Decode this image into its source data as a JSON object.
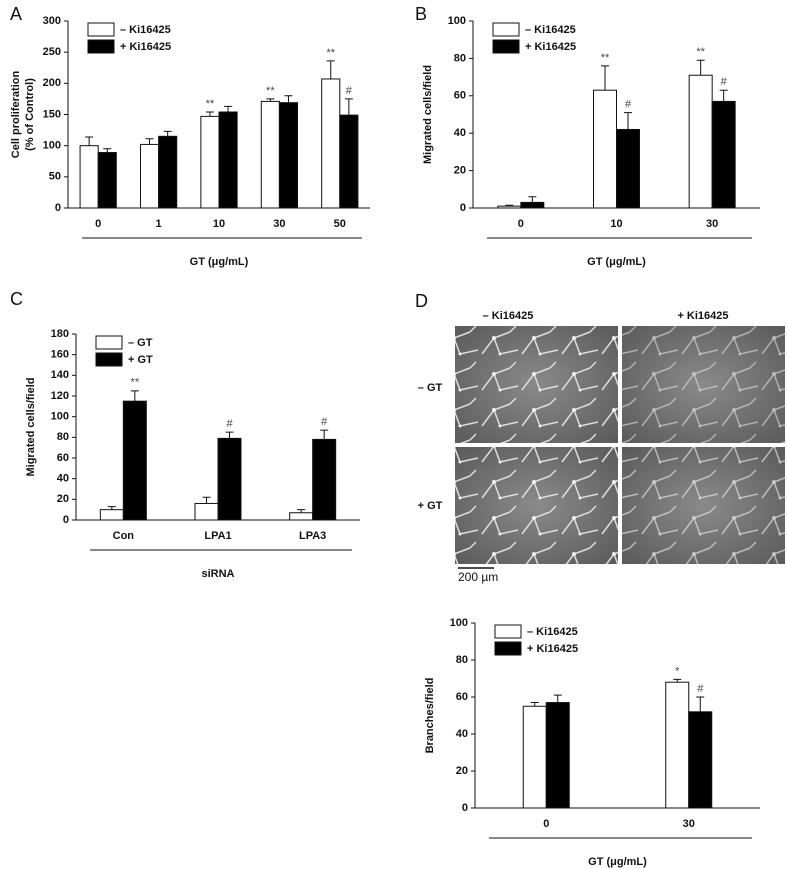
{
  "chart_data": [
    {
      "panel": "A",
      "type": "bar",
      "ylabel": [
        "Cell proliferation",
        "(% of Control)"
      ],
      "xlabel": "GT (μg/mL)",
      "categories": [
        "0",
        "1",
        "10",
        "30",
        "50"
      ],
      "series": [
        {
          "name": "– Ki16425",
          "color": "#ffffff",
          "values": [
            100,
            102,
            147,
            171,
            207
          ],
          "errors": [
            14,
            9,
            7,
            4,
            29
          ],
          "annotations": [
            null,
            null,
            "**",
            "**",
            "**"
          ]
        },
        {
          "name": "+ Ki16425",
          "color": "#000000",
          "values": [
            89,
            115,
            154,
            169,
            149
          ],
          "errors": [
            6,
            8,
            9,
            11,
            26
          ],
          "annotations": [
            null,
            null,
            null,
            null,
            "#"
          ]
        }
      ],
      "ylim": [
        0,
        300
      ],
      "yticks": [
        0,
        50,
        100,
        150,
        200,
        250,
        300
      ]
    },
    {
      "panel": "B",
      "type": "bar",
      "ylabel": [
        "Migrated cells/field"
      ],
      "xlabel": "GT (μg/mL)",
      "categories": [
        "0",
        "10",
        "30"
      ],
      "series": [
        {
          "name": "– Ki16425",
          "color": "#ffffff",
          "values": [
            1,
            63,
            71
          ],
          "errors": [
            0.5,
            13,
            8
          ],
          "annotations": [
            null,
            "**",
            "**"
          ]
        },
        {
          "name": "+ Ki16425",
          "color": "#000000",
          "values": [
            3,
            42,
            57
          ],
          "errors": [
            3,
            9,
            6
          ],
          "annotations": [
            null,
            "#",
            "#"
          ]
        }
      ],
      "ylim": [
        0,
        100
      ],
      "yticks": [
        0,
        20,
        40,
        60,
        80,
        100
      ]
    },
    {
      "panel": "C",
      "type": "bar",
      "ylabel": [
        "Migrated cells/field"
      ],
      "xlabel": "siRNA",
      "categories": [
        "Con",
        "LPA1",
        "LPA3"
      ],
      "series": [
        {
          "name": "– GT",
          "color": "#ffffff",
          "values": [
            10,
            16,
            7
          ],
          "errors": [
            3,
            6,
            3
          ],
          "annotations": [
            null,
            null,
            null
          ]
        },
        {
          "name": "+ GT",
          "color": "#000000",
          "values": [
            115,
            79,
            78
          ],
          "errors": [
            10,
            6,
            9
          ],
          "annotations": [
            "**",
            "#",
            "#"
          ]
        }
      ],
      "ylim": [
        0,
        180
      ],
      "yticks": [
        0,
        20,
        40,
        60,
        80,
        100,
        120,
        140,
        160,
        180
      ]
    },
    {
      "type": "bar",
      "ylabel": [
        "Branches/field"
      ],
      "xlabel": "GT (μg/mL)",
      "categories": [
        "0",
        "30"
      ],
      "series": [
        {
          "name": "– Ki16425",
          "color": "#ffffff",
          "values": [
            55,
            68
          ],
          "errors": [
            2,
            1.5
          ],
          "annotations": [
            null,
            "*"
          ]
        },
        {
          "name": "+ Ki16425",
          "color": "#000000",
          "values": [
            57,
            52
          ],
          "errors": [
            4,
            8
          ],
          "annotations": [
            null,
            "#"
          ]
        }
      ],
      "ylim": [
        0,
        100
      ],
      "yticks": [
        0,
        20,
        40,
        60,
        80,
        100
      ]
    }
  ],
  "micrographs": {
    "panel": "D",
    "columns": [
      "– Ki16425",
      "+ Ki16425"
    ],
    "rows": [
      "– GT",
      "+ GT"
    ],
    "scale_bar": "200 µm"
  }
}
